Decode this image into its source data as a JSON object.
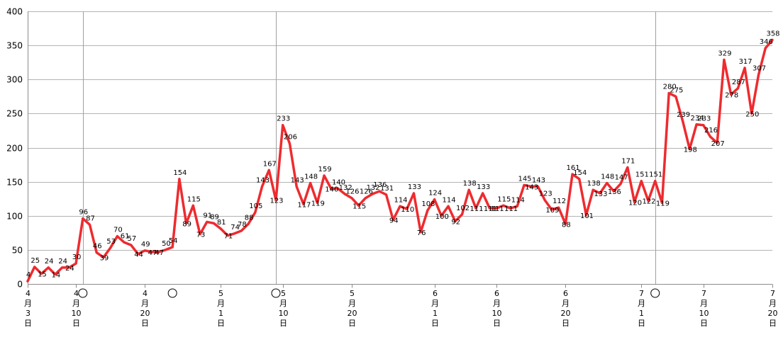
{
  "chart_data": {
    "type": "line",
    "title": "",
    "xlabel": "",
    "ylabel": "",
    "ylim": [
      0,
      400
    ],
    "yticks": [
      0,
      50,
      100,
      150,
      200,
      250,
      300,
      350,
      400
    ],
    "grid": true,
    "legend": "none",
    "colors": {
      "line": "#ee2b2f",
      "grid": "#b3b3b3",
      "axis": "#8c8c8c"
    },
    "x_start_label": "4月3日",
    "x_ticks": [
      {
        "index": 0,
        "label": "4月3日"
      },
      {
        "index": 7,
        "label": "4月10日"
      },
      {
        "index": 17,
        "label": "4月20日"
      },
      {
        "index": 28,
        "label": "5月1日"
      },
      {
        "index": 37,
        "label": "5月10日"
      },
      {
        "index": 47,
        "label": "5月20日"
      },
      {
        "index": 59,
        "label": "6月1日"
      },
      {
        "index": 68,
        "label": "6月10日"
      },
      {
        "index": 78,
        "label": "6月20日"
      },
      {
        "index": 89,
        "label": "7月1日"
      },
      {
        "index": 98,
        "label": "7月10日"
      },
      {
        "index": 108,
        "label": "7月20日"
      }
    ],
    "markers": [
      {
        "index": 8
      },
      {
        "index": 21
      },
      {
        "index": 36
      },
      {
        "index": 91
      }
    ],
    "vertical_lines": [
      {
        "index": 8
      },
      {
        "index": 36
      },
      {
        "index": 91
      }
    ],
    "series": [
      {
        "values": [
          4,
          25,
          15,
          24,
          14,
          24,
          24,
          30,
          96,
          87,
          46,
          39,
          53,
          70,
          61,
          57,
          44,
          49,
          47,
          47,
          50,
          54,
          154,
          89,
          115,
          73,
          91,
          89,
          81,
          71,
          74,
          78,
          88,
          105,
          143,
          167,
          123,
          233,
          206,
          143,
          117,
          148,
          119,
          159,
          140,
          140,
          132,
          126,
          115,
          126,
          132,
          136,
          131,
          94,
          114,
          110,
          133,
          76,
          108,
          124,
          100,
          114,
          92,
          102,
          138,
          111,
          133,
          111,
          111,
          115,
          111,
          114,
          145,
          143,
          143,
          123,
          109,
          112,
          88,
          161,
          154,
          101,
          138,
          133,
          148,
          136,
          147,
          171,
          120,
          151,
          122,
          151,
          119,
          280,
          275,
          239,
          198,
          234,
          233,
          216,
          207,
          329,
          278,
          287,
          317,
          250,
          307,
          346,
          358
        ]
      }
    ]
  }
}
